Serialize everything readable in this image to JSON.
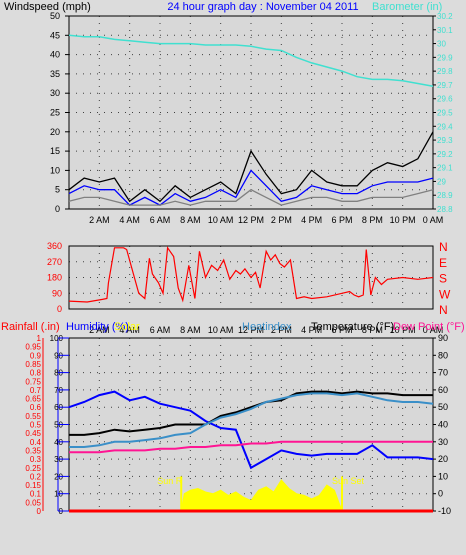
{
  "chart_data": [
    {
      "type": "line",
      "title": "24 hour graph day : November 04 2011",
      "left_axis_label": "Windspeed (mph)",
      "right_axis_label": "Barometer (in)",
      "x_ticks": [
        "2 AM",
        "4 AM",
        "6 AM",
        "8 AM",
        "10 AM",
        "12 PM",
        "2 PM",
        "4 PM",
        "6 PM",
        "8 PM",
        "10 PM",
        "0 AM"
      ],
      "y_left_ticks": [
        "0",
        "5",
        "10",
        "15",
        "20",
        "25",
        "30",
        "35",
        "40",
        "45",
        "50"
      ],
      "y_left_range": [
        0,
        50
      ],
      "y_right_ticks": [
        "28.8",
        "28.9",
        "29",
        "29.1",
        "29.2",
        "29.3",
        "29.4",
        "29.5",
        "29.6",
        "29.7",
        "29.8",
        "29.9",
        "30",
        "30.1",
        "30.2"
      ],
      "y_right_range": [
        28.8,
        30.2
      ],
      "grid": true,
      "series": [
        {
          "name": "Barometer",
          "axis": "right",
          "color": "#40e0d0",
          "x": [
            0,
            1,
            2,
            3,
            4,
            5,
            6,
            7,
            8,
            9,
            10,
            11,
            12,
            13,
            14,
            15,
            16,
            17,
            18,
            19,
            20,
            21,
            22,
            23,
            24
          ],
          "y": [
            30.06,
            30.05,
            30.05,
            30.03,
            30.02,
            30.01,
            30.0,
            30.0,
            30.0,
            29.99,
            29.99,
            29.99,
            29.98,
            29.96,
            29.95,
            29.9,
            29.86,
            29.83,
            29.8,
            29.76,
            29.74,
            29.74,
            29.73,
            29.71,
            29.69
          ]
        },
        {
          "name": "Wind gust",
          "axis": "left",
          "color": "#000000",
          "x": [
            0,
            1,
            2,
            3,
            4,
            5,
            6,
            7,
            8,
            9,
            10,
            11,
            12,
            13,
            14,
            15,
            16,
            17,
            18,
            19,
            20,
            21,
            22,
            23,
            24
          ],
          "y": [
            5,
            8,
            7,
            8,
            2,
            5,
            2,
            6,
            3,
            5,
            7,
            4,
            15,
            9,
            4,
            5,
            10,
            7,
            6,
            6,
            10,
            12,
            11,
            13,
            20
          ]
        },
        {
          "name": "Wind speed",
          "axis": "left",
          "color": "#0000ff",
          "x": [
            0,
            1,
            2,
            3,
            4,
            5,
            6,
            7,
            8,
            9,
            10,
            11,
            12,
            13,
            14,
            15,
            16,
            17,
            18,
            19,
            20,
            21,
            22,
            23,
            24
          ],
          "y": [
            4,
            6,
            5,
            5,
            1,
            3,
            1,
            4,
            2,
            3,
            5,
            3,
            10,
            6,
            2,
            3,
            6,
            5,
            4,
            4,
            6,
            7,
            7,
            7,
            8
          ]
        },
        {
          "name": "Wind average",
          "axis": "left",
          "color": "#808080",
          "x": [
            0,
            1,
            2,
            3,
            4,
            5,
            6,
            7,
            8,
            9,
            10,
            11,
            12,
            13,
            14,
            15,
            16,
            17,
            18,
            19,
            20,
            21,
            22,
            23,
            24
          ],
          "y": [
            2,
            3,
            3,
            2,
            1,
            1,
            1,
            2,
            1,
            2,
            2,
            2,
            5,
            3,
            1,
            2,
            3,
            3,
            2,
            2,
            3,
            3,
            3,
            4,
            5
          ]
        }
      ]
    },
    {
      "type": "line",
      "title": "",
      "y_left_ticks": [
        "0",
        "90",
        "180",
        "270",
        "360"
      ],
      "y_left_range": [
        0,
        360
      ],
      "y_right_ticks": [
        "N",
        "W",
        "S",
        "E",
        "N"
      ],
      "grid": true,
      "series": [
        {
          "name": "Wind direction",
          "axis": "left",
          "color": "#ff0000",
          "x": [
            0,
            1.2,
            2.2,
            2.5,
            2.6,
            3.0,
            3.4,
            3.6,
            3.8,
            4.6,
            5.0,
            5.3,
            5.5,
            5.9,
            6.2,
            6.5,
            6.9,
            7.2,
            7.5,
            7.9,
            8.3,
            8.6,
            9.0,
            9.4,
            9.8,
            10.2,
            10.6,
            11.0,
            11.3,
            11.6,
            12.0,
            12.3,
            12.6,
            13.0,
            13.3,
            13.6,
            13.9,
            14.2,
            14.6,
            15.0,
            15.5,
            16.0,
            17.0,
            18.0,
            18.5,
            18.8,
            19.1,
            19.4,
            19.6,
            19.9,
            20.2,
            20.6,
            21.0,
            22.0,
            23.0,
            24.0
          ],
          "y": [
            45,
            40,
            55,
            60,
            150,
            350,
            350,
            350,
            340,
            90,
            60,
            290,
            200,
            150,
            90,
            350,
            300,
            120,
            50,
            250,
            60,
            330,
            180,
            250,
            220,
            280,
            170,
            220,
            200,
            230,
            180,
            210,
            120,
            330,
            280,
            310,
            260,
            240,
            280,
            60,
            70,
            60,
            70,
            90,
            100,
            80,
            70,
            80,
            340,
            80,
            180,
            140,
            170,
            180,
            170,
            180
          ]
        }
      ]
    },
    {
      "type": "line",
      "left_axis_label_rainfall": "Rainfall (.in)",
      "left_axis_label_humidity": "Humidity (%)",
      "solar_label": "Solar",
      "heatindex_label": "Heatindex",
      "temperature_label": "Temperature (°F)",
      "dewpoint_label": "Dew Point (°F)",
      "sunrise_label": "Sun R",
      "sunset_label": "Sun Set",
      "x_ticks": [
        "2 AM",
        "4 AM",
        "6 AM",
        "8 AM",
        "10 AM",
        "12 PM",
        "2 PM",
        "4 PM",
        "6 PM",
        "8 PM",
        "10 PM",
        "0 AM"
      ],
      "y_rain_ticks": [
        "0",
        "0.05",
        "0.1",
        "0.15",
        "0.2",
        "0.25",
        "0.3",
        "0.35",
        "0.4",
        "0.45",
        "0.5",
        "0.55",
        "0.6",
        "0.65",
        "0.7",
        "0.75",
        "0.8",
        "0.85",
        "0.9",
        "0.95",
        "1"
      ],
      "y_rain_range": [
        0,
        1
      ],
      "y_humidity_ticks": [
        "0",
        "10",
        "20",
        "30",
        "40",
        "50",
        "60",
        "70",
        "80",
        "90",
        "100"
      ],
      "y_humidity_range": [
        0,
        100
      ],
      "y_temp_ticks": [
        "-10",
        "0",
        "10",
        "20",
        "30",
        "40",
        "50",
        "60",
        "70",
        "80",
        "90"
      ],
      "y_temp_range": [
        -10,
        90
      ],
      "grid": true,
      "series": [
        {
          "name": "Humidity",
          "axis": "humidity",
          "color": "#0000ff",
          "x": [
            0,
            1,
            2,
            3,
            4,
            5,
            6,
            7,
            8,
            9,
            10,
            11,
            12,
            13,
            14,
            15,
            16,
            17,
            18,
            19,
            20,
            21,
            22,
            23,
            24
          ],
          "y": [
            60,
            63,
            67,
            69,
            64,
            66,
            62,
            60,
            58,
            52,
            48,
            47,
            25,
            30,
            35,
            33,
            32,
            33,
            33,
            33,
            38,
            31,
            31,
            31,
            30
          ]
        },
        {
          "name": "Temperature",
          "axis": "temp",
          "color": "#000000",
          "x": [
            0,
            1,
            2,
            3,
            4,
            5,
            6,
            7,
            8,
            9,
            10,
            11,
            12,
            13,
            14,
            15,
            16,
            17,
            18,
            19,
            20,
            21,
            22,
            23,
            24
          ],
          "y": [
            34,
            34,
            35,
            37,
            36,
            37,
            38,
            40,
            40,
            40,
            45,
            47,
            50,
            53,
            54,
            58,
            59,
            59,
            58,
            59,
            58,
            58,
            57,
            57,
            57
          ]
        },
        {
          "name": "Heatindex",
          "axis": "temp",
          "color": "#3a8fc8",
          "x": [
            0,
            1,
            2,
            3,
            4,
            5,
            6,
            7,
            8,
            9,
            10,
            11,
            12,
            13,
            14,
            15,
            16,
            17,
            18,
            19,
            20,
            21,
            22,
            23,
            24
          ],
          "y": [
            27,
            27,
            28,
            30,
            30,
            31,
            32,
            34,
            35,
            40,
            44,
            46,
            49,
            53,
            55,
            57,
            58,
            58,
            57,
            58,
            56,
            54,
            53,
            53,
            52
          ]
        },
        {
          "name": "Dew Point",
          "axis": "temp",
          "color": "#ff1493",
          "x": [
            0,
            1,
            2,
            3,
            4,
            5,
            6,
            7,
            8,
            9,
            10,
            11,
            12,
            13,
            14,
            15,
            16,
            17,
            18,
            19,
            20,
            21,
            22,
            23,
            24
          ],
          "y": [
            24,
            24,
            24,
            25,
            25,
            25,
            26,
            26,
            27,
            27,
            28,
            28,
            29,
            29,
            30,
            30,
            30,
            30,
            30,
            30,
            30,
            30,
            30,
            30,
            30
          ]
        },
        {
          "name": "Solar",
          "axis": "humidity",
          "color": "#ffff00",
          "x": [
            7.4,
            7.6,
            8.0,
            8.5,
            9.0,
            9.5,
            10.0,
            10.5,
            11.0,
            11.5,
            12.0,
            12.5,
            13.0,
            13.5,
            14.0,
            14.5,
            15.0,
            15.5,
            16.0,
            16.5,
            17.0,
            17.5,
            18.0
          ],
          "y": [
            0,
            10,
            12,
            13,
            11,
            10,
            12,
            9,
            11,
            8,
            6,
            12,
            14,
            11,
            18,
            13,
            10,
            9,
            7,
            9,
            15,
            12,
            0
          ]
        },
        {
          "name": "Rainfall",
          "axis": "rain",
          "color": "#ff0000",
          "x": [
            0,
            24
          ],
          "y": [
            0,
            0
          ]
        }
      ]
    }
  ]
}
